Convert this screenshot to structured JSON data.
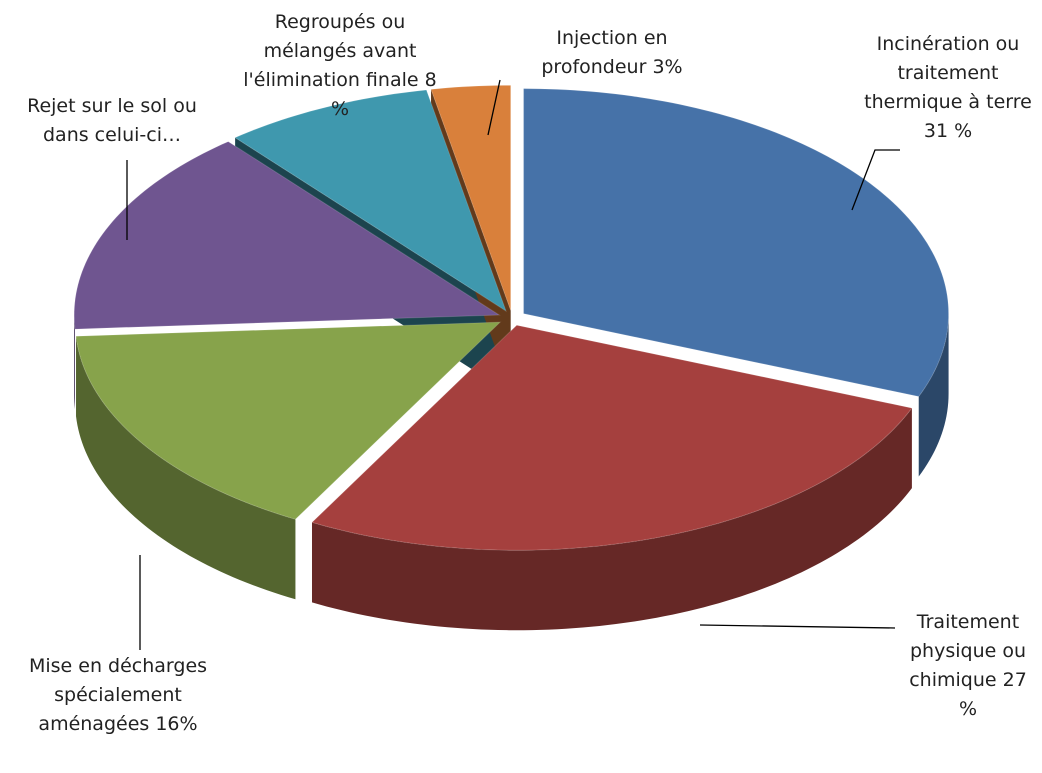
{
  "chart_data": {
    "type": "pie3d",
    "categories": [
      "Incinération ou traitement thermique à terre",
      "Traitement physique ou chimique",
      "Mise en décharges spécialement aménagées",
      "Rejet sur le sol ou dans celui-ci…",
      "Regroupés ou mélangés avant l'élimination finale",
      "Injection en profondeur"
    ],
    "values": [
      31,
      27,
      16,
      15,
      8,
      3
    ],
    "value_labels": [
      "31 %",
      "27 %",
      "16%",
      null,
      "8 %",
      "3%"
    ],
    "colors": [
      "#4672a8",
      "#a5403e",
      "#87a34b",
      "#6f5590",
      "#3f98ae",
      "#d9803b"
    ]
  }
}
